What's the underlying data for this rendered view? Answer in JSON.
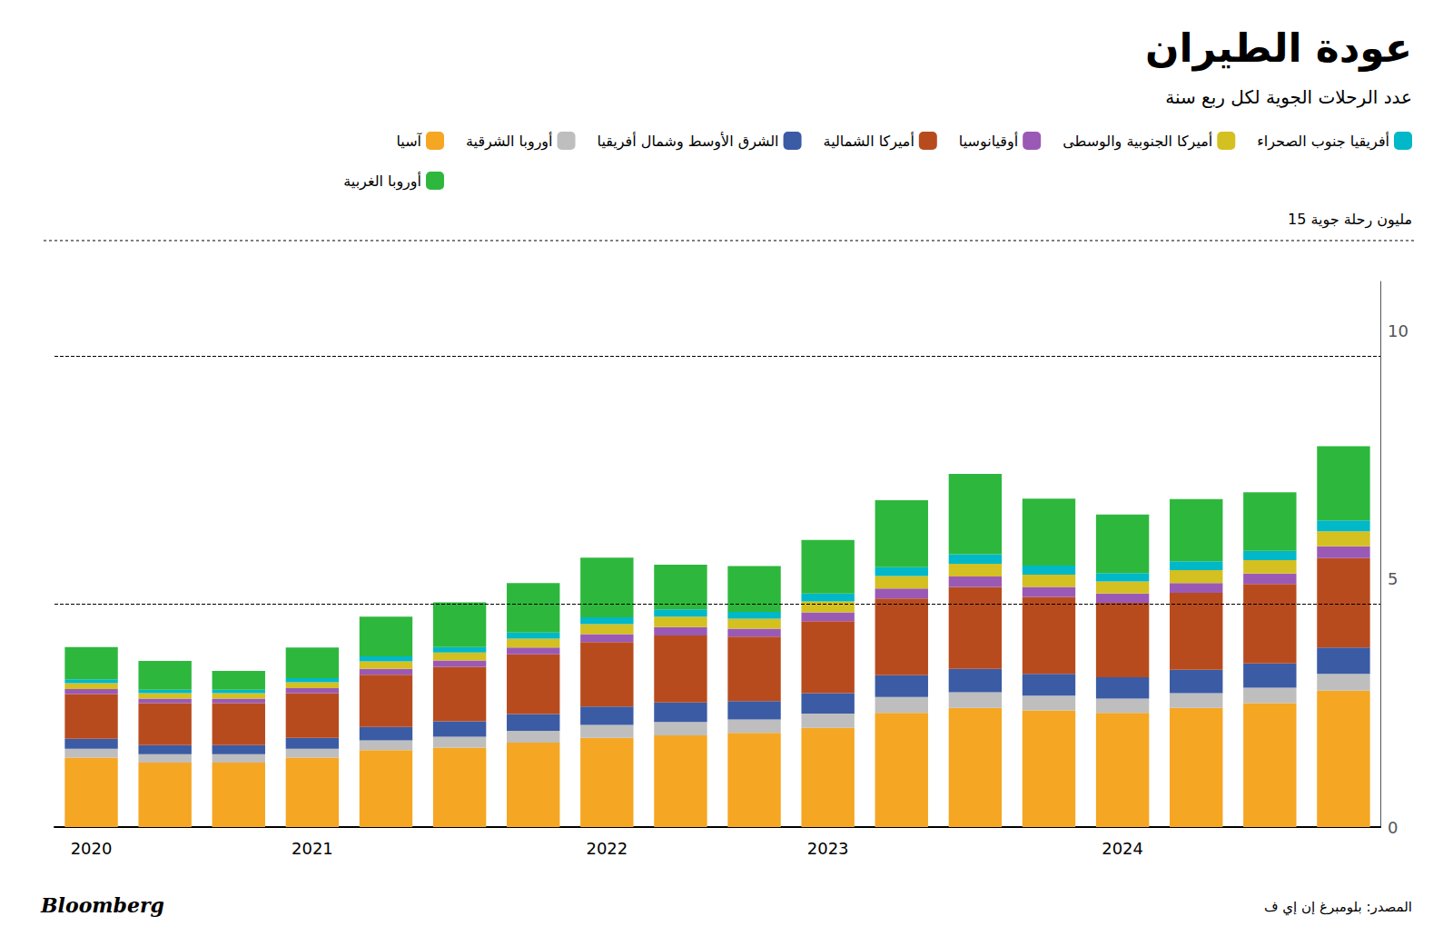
{
  "chart_data": {
    "type": "bar",
    "stacked": true,
    "title": "عودة الطيران",
    "subtitle": "عدد الرحلات الجوية لكل ربع سنة",
    "note": "15 مليون رحلة جوية",
    "source": "المصدر: بلومبرغ إن إي ف",
    "brand": "Bloomberg",
    "categories": [
      "2020",
      null,
      null,
      "2021",
      null,
      null,
      null,
      "2022",
      null,
      null,
      "2023",
      null,
      null,
      null,
      "2024",
      null,
      null,
      null
    ],
    "series": [
      {
        "name": "آسيا",
        "color": "#F5A623",
        "values": [
          1.4,
          1.3,
          1.3,
          1.4,
          1.55,
          1.6,
          1.7,
          1.8,
          1.85,
          1.9,
          2.0,
          2.3,
          2.4,
          2.35,
          2.3,
          2.4,
          2.5,
          2.75
        ]
      },
      {
        "name": "أوروبا الشرقية",
        "color": "#BEBEBE",
        "values": [
          0.18,
          0.17,
          0.17,
          0.18,
          0.2,
          0.22,
          0.24,
          0.26,
          0.27,
          0.27,
          0.29,
          0.32,
          0.32,
          0.3,
          0.29,
          0.3,
          0.31,
          0.34
        ]
      },
      {
        "name": "الشرق الأوسط وشمال أفريقيا",
        "color": "#3B5BA5",
        "values": [
          0.2,
          0.18,
          0.18,
          0.22,
          0.27,
          0.31,
          0.34,
          0.37,
          0.39,
          0.37,
          0.41,
          0.44,
          0.47,
          0.44,
          0.43,
          0.47,
          0.49,
          0.53
        ]
      },
      {
        "name": "أميركا الشمالية",
        "color": "#B84B1E",
        "values": [
          0.9,
          0.85,
          0.85,
          0.9,
          1.05,
          1.1,
          1.2,
          1.3,
          1.35,
          1.3,
          1.45,
          1.55,
          1.65,
          1.55,
          1.5,
          1.55,
          1.6,
          1.8
        ]
      },
      {
        "name": "أوقيانوسيا",
        "color": "#9B59B6",
        "values": [
          0.1,
          0.09,
          0.09,
          0.1,
          0.12,
          0.13,
          0.14,
          0.16,
          0.17,
          0.16,
          0.18,
          0.2,
          0.21,
          0.2,
          0.19,
          0.2,
          0.21,
          0.24
        ]
      },
      {
        "name": "أميركا الجنوبية والوسطى",
        "color": "#D4C020",
        "values": [
          0.12,
          0.11,
          0.11,
          0.12,
          0.15,
          0.16,
          0.18,
          0.2,
          0.21,
          0.2,
          0.22,
          0.25,
          0.26,
          0.25,
          0.24,
          0.26,
          0.27,
          0.3
        ]
      },
      {
        "name": "أفريقيا جنوب الصحراء",
        "color": "#00B8C8",
        "values": [
          0.08,
          0.07,
          0.07,
          0.08,
          0.1,
          0.11,
          0.12,
          0.14,
          0.15,
          0.14,
          0.16,
          0.18,
          0.19,
          0.18,
          0.17,
          0.18,
          0.19,
          0.22
        ]
      },
      {
        "name": "أوروبا الغربية",
        "color": "#2DB83D",
        "values": [
          0.65,
          0.58,
          0.38,
          0.62,
          0.8,
          0.9,
          1.0,
          1.2,
          0.9,
          0.92,
          1.08,
          1.35,
          1.62,
          1.35,
          1.18,
          1.25,
          1.18,
          1.5
        ]
      }
    ],
    "ylim": [
      0,
      11
    ],
    "yticks": [
      0,
      5,
      10
    ],
    "grid": false,
    "legend": "top",
    "dotted_lines": [
      4.5,
      9.5
    ]
  }
}
